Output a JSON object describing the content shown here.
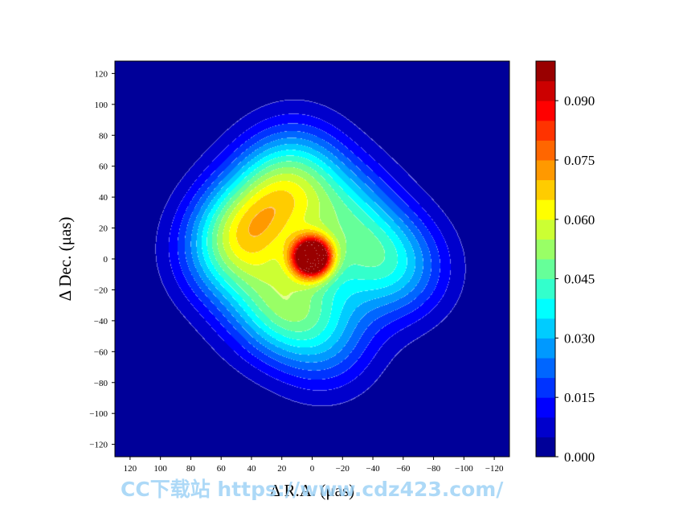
{
  "chart_data": {
    "type": "heatmap",
    "subtype": "filled-contour",
    "title": "",
    "xlabel": "Δ R.A.  (μas)",
    "ylabel": "Δ Dec.  (μas)",
    "xlim": [
      130,
      -130
    ],
    "ylim": [
      -128,
      128
    ],
    "x_ticks": [
      120,
      100,
      80,
      60,
      40,
      20,
      0,
      -20,
      -40,
      -60,
      -80,
      -100,
      -120
    ],
    "y_ticks": [
      120,
      100,
      80,
      60,
      40,
      20,
      0,
      -20,
      -40,
      -60,
      -80,
      -100,
      -120
    ],
    "colorbar": {
      "min": 0.0,
      "max": 0.1,
      "levels": 20,
      "ticks": [
        0.0,
        0.015,
        0.03,
        0.045,
        0.06,
        0.075,
        0.09
      ],
      "tick_labels": [
        "0.000",
        "0.015",
        "0.030",
        "0.045",
        "0.060",
        "0.075",
        "0.090"
      ],
      "colormap": "jet"
    },
    "peak": {
      "x": 0,
      "y": 1,
      "value": 0.1
    },
    "components": [
      {
        "x": 0,
        "y": 1,
        "amplitude": 0.095
      },
      {
        "x": 45,
        "y": 17,
        "amplitude": 0.04
      },
      {
        "x": 22,
        "y": 40,
        "amplitude": 0.032
      },
      {
        "x": 10,
        "y": 60,
        "amplitude": 0.02
      },
      {
        "x": -20,
        "y": 30,
        "amplitude": 0.026
      },
      {
        "x": -40,
        "y": 2,
        "amplitude": 0.024
      },
      {
        "x": -60,
        "y": -8,
        "amplitude": 0.018
      },
      {
        "x": 10,
        "y": -30,
        "amplitude": 0.026
      },
      {
        "x": -10,
        "y": -55,
        "amplitude": 0.018
      },
      {
        "x": 28,
        "y": -30,
        "amplitude": 0.02
      },
      {
        "x": 60,
        "y": 0,
        "amplitude": 0.016
      }
    ],
    "grid": false,
    "background_value": 0.0
  },
  "watermark": "CC下载站  https://www.cdz423.com/"
}
